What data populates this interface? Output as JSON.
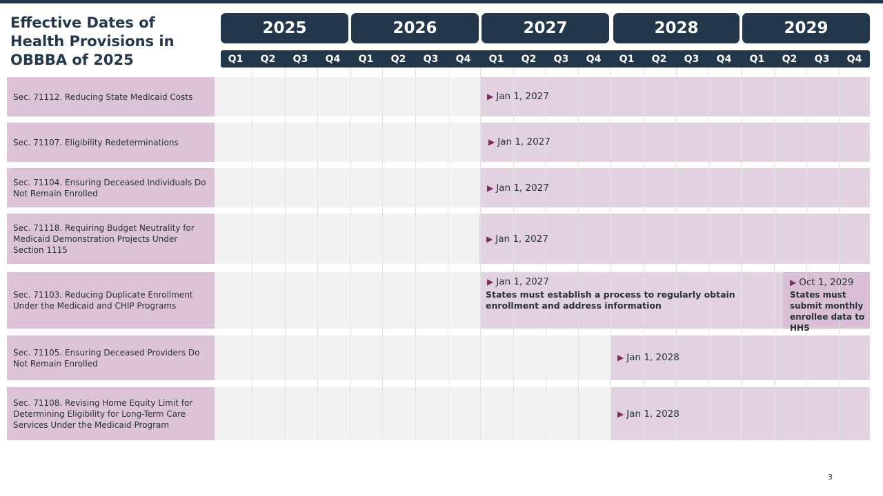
{
  "title": "Effective Dates of Health Provisions in OBBBA of 2025",
  "years": [
    "2025",
    "2026",
    "2027",
    "2028",
    "2029"
  ],
  "quarters": [
    "Q1",
    "Q2",
    "Q3",
    "Q4",
    "Q1",
    "Q2",
    "Q3",
    "Q4",
    "Q1",
    "Q2",
    "Q3",
    "Q4",
    "Q1",
    "Q2",
    "Q3",
    "Q4",
    "Q1",
    "Q2",
    "Q3",
    "Q4"
  ],
  "rows": [
    {
      "label": "Sec. 71112. Reducing State Medicaid Costs",
      "milestones": [
        {
          "date": "Jan 1, 2027",
          "description": ""
        }
      ]
    },
    {
      "label": "Sec. 71107. Eligibility Redeterminations",
      "milestones": [
        {
          "date": "Jan 1, 2027",
          "description": ""
        }
      ]
    },
    {
      "label": "Sec. 71104. Ensuring Deceased Individuals Do Not Remain Enrolled",
      "milestones": [
        {
          "date": "Jan 1, 2027",
          "description": ""
        }
      ]
    },
    {
      "label": "Sec. 71118. Requiring Budget Neutrality for Medicaid Demonstration Projects Under Section 1115",
      "milestones": [
        {
          "date": "Jan 1, 2027",
          "description": ""
        }
      ]
    },
    {
      "label": "Sec. 71103. Reducing Duplicate Enrollment Under the Medicaid and CHIP Programs",
      "milestones": [
        {
          "date": "Jan 1, 2027",
          "description": "States must establish a process to regularly obtain enrollment and address information"
        },
        {
          "date": "Oct 1, 2029",
          "description": "States must submit monthly enrollee data to HHS"
        }
      ]
    },
    {
      "label": "Sec. 71105. Ensuring Deceased Providers Do Not Remain Enrolled",
      "milestones": [
        {
          "date": "Jan 1, 2028",
          "description": ""
        }
      ]
    },
    {
      "label": "Sec. 71108. Revising Home Equity Limit for Determining Eligibility for Long-Term Care Services Under the Medicaid Program",
      "milestones": [
        {
          "date": "Jan 1, 2028",
          "description": ""
        }
      ]
    }
  ],
  "page_number": "3",
  "colors": {
    "header": "#24364a",
    "row_label": "#dcc3d8",
    "accent": "#7a2d5c",
    "grid_bg": "#f2f2f2"
  },
  "icons": {
    "milestone": "triangle-right-icon"
  }
}
